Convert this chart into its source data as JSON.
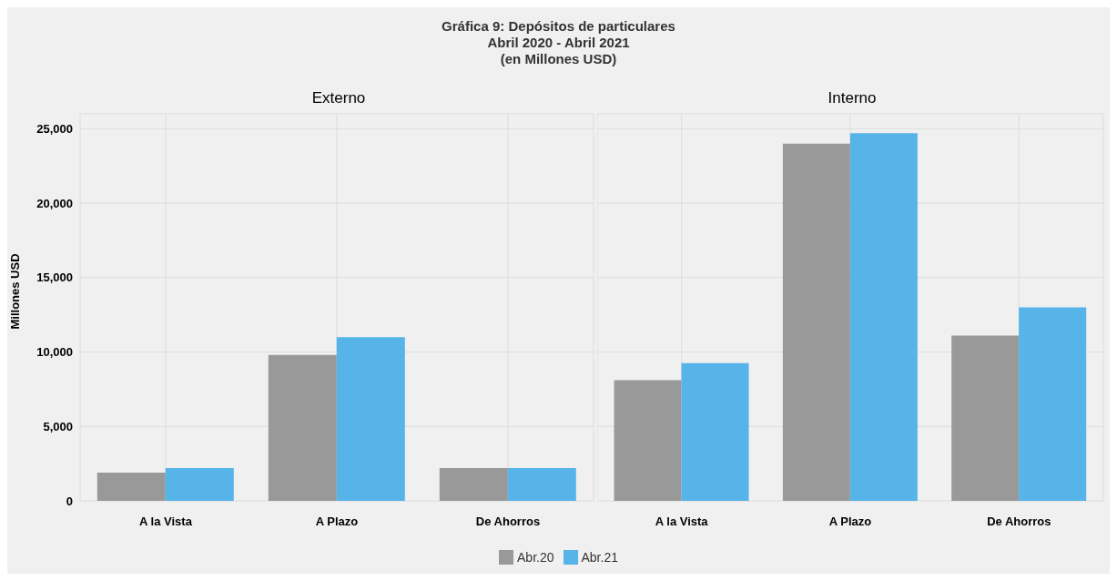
{
  "chart_data": [
    {
      "type": "bar",
      "title": "Externo",
      "annotations": [
        "Gráfica 9:  Depósitos de particulares",
        "Abril 2020 - Abril 2021",
        "(en Millones USD)"
      ],
      "ylabel": "Millones USD",
      "categories": [
        "A la Vista",
        "A Plazo",
        "De Ahorros"
      ],
      "series": [
        {
          "name": "Abr.20",
          "color": "#999999",
          "values": [
            1900,
            9800,
            2200
          ]
        },
        {
          "name": "Abr.21",
          "color": "#56b4e9",
          "values": [
            2200,
            11000,
            2200
          ]
        }
      ],
      "ylim": [
        0,
        26000
      ],
      "yticks": [
        {
          "value": 0,
          "label": "0"
        },
        {
          "value": 5000,
          "label": "5,000"
        },
        {
          "value": 10000,
          "label": "10,000"
        },
        {
          "value": 15000,
          "label": "15,000"
        },
        {
          "value": 20000,
          "label": "20,000"
        },
        {
          "value": 25000,
          "label": "25,000"
        }
      ],
      "grid": true,
      "legend": "bottom"
    },
    {
      "type": "bar",
      "title": "Interno",
      "categories": [
        "A la Vista",
        "A Plazo",
        "De Ahorros"
      ],
      "series": [
        {
          "color": "#999999",
          "values": [
            8100,
            24000,
            11100
          ]
        },
        {
          "color": "#56b4e9",
          "values": [
            9250,
            24700,
            13000
          ]
        }
      ],
      "ylim": [
        0,
        26000
      ],
      "yticks": [
        0,
        5000,
        10000,
        15000,
        20000,
        25000
      ],
      "grid": true,
      "tick_labels": "x"
    }
  ]
}
